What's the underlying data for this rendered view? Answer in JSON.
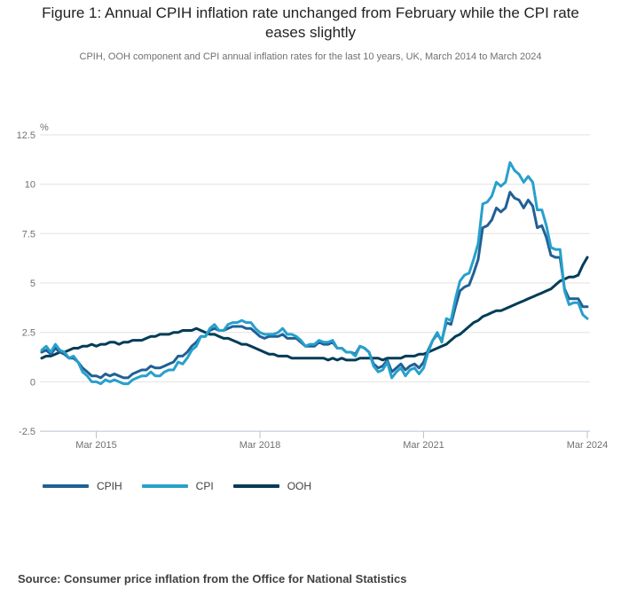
{
  "header": {
    "title": "Figure 1: Annual CPIH inflation rate unchanged from February while the CPI rate eases slightly",
    "subtitle": "CPIH, OOH component and CPI annual inflation rates for the last 10 years, UK, March 2014 to March 2024"
  },
  "source": {
    "text": "Source: Consumer price inflation from the Office for National Statistics"
  },
  "style": {
    "grid_color": "#e2e2e2",
    "axis_color": "#b9c3d2",
    "axis_text_color": "#707071",
    "title_color": "#222222",
    "subtitle_color": "#707071",
    "legend_text_color": "#414042",
    "source_color": "#414042",
    "background": "#ffffff"
  },
  "chart_data": {
    "type": "line",
    "unit_label": "%",
    "x_start": "March 2014",
    "x_end": "March 2024",
    "x_frequency": "monthly",
    "x_tick_labels": [
      "Mar 2015",
      "Mar 2018",
      "Mar 2021",
      "Mar 2024"
    ],
    "x_tick_month_index": [
      12,
      48,
      84,
      120
    ],
    "y_ticks": [
      -2.5,
      0,
      2.5,
      5,
      7.5,
      10,
      12.5
    ],
    "ylim": [
      -2.5,
      12.5
    ],
    "grid": "horizontal",
    "legend_position": "bottom",
    "line_width": 3,
    "draw_order": [
      2,
      0,
      1
    ],
    "series": [
      {
        "name": "CPIH",
        "color": "#206095",
        "values": [
          1.5,
          1.6,
          1.4,
          1.7,
          1.5,
          1.4,
          1.2,
          1.2,
          1.0,
          0.7,
          0.5,
          0.3,
          0.3,
          0.2,
          0.4,
          0.3,
          0.4,
          0.3,
          0.2,
          0.2,
          0.4,
          0.5,
          0.6,
          0.6,
          0.8,
          0.7,
          0.7,
          0.8,
          0.9,
          1.0,
          1.3,
          1.3,
          1.5,
          1.8,
          2.0,
          2.3,
          2.3,
          2.6,
          2.7,
          2.6,
          2.6,
          2.7,
          2.8,
          2.8,
          2.8,
          2.7,
          2.7,
          2.5,
          2.3,
          2.2,
          2.3,
          2.3,
          2.3,
          2.4,
          2.2,
          2.2,
          2.2,
          2.0,
          1.8,
          1.8,
          1.8,
          2.0,
          1.9,
          1.9,
          2.0,
          1.7,
          1.7,
          1.5,
          1.5,
          1.4,
          1.8,
          1.7,
          1.5,
          0.9,
          0.7,
          0.8,
          1.1,
          0.5,
          0.7,
          0.9,
          0.6,
          0.8,
          0.9,
          0.7,
          1.0,
          1.6,
          2.1,
          2.4,
          2.1,
          3.0,
          2.9,
          3.8,
          4.6,
          4.8,
          4.9,
          5.5,
          6.2,
          7.8,
          7.9,
          8.2,
          8.8,
          8.6,
          8.8,
          9.6,
          9.3,
          9.2,
          8.8,
          9.2,
          8.9,
          7.8,
          7.9,
          7.3,
          6.4,
          6.3,
          6.3,
          4.7,
          4.2,
          4.2,
          4.2,
          3.8,
          3.8
        ]
      },
      {
        "name": "CPI",
        "color": "#27a0cc",
        "values": [
          1.6,
          1.8,
          1.5,
          1.9,
          1.6,
          1.5,
          1.2,
          1.3,
          1.0,
          0.5,
          0.3,
          0.0,
          0.0,
          -0.1,
          0.1,
          0.0,
          0.1,
          0.0,
          -0.1,
          -0.1,
          0.1,
          0.2,
          0.3,
          0.3,
          0.5,
          0.3,
          0.3,
          0.5,
          0.6,
          0.6,
          1.0,
          0.9,
          1.2,
          1.6,
          1.8,
          2.3,
          2.3,
          2.7,
          2.9,
          2.6,
          2.6,
          2.9,
          3.0,
          3.0,
          3.1,
          3.0,
          3.0,
          2.7,
          2.5,
          2.4,
          2.4,
          2.4,
          2.5,
          2.7,
          2.4,
          2.4,
          2.3,
          2.1,
          1.8,
          1.9,
          1.9,
          2.1,
          2.0,
          2.0,
          2.1,
          1.7,
          1.7,
          1.5,
          1.5,
          1.3,
          1.8,
          1.7,
          1.5,
          0.8,
          0.5,
          0.6,
          1.0,
          0.2,
          0.5,
          0.7,
          0.3,
          0.6,
          0.7,
          0.4,
          0.7,
          1.5,
          2.1,
          2.5,
          2.0,
          3.2,
          3.1,
          4.2,
          5.1,
          5.4,
          5.5,
          6.2,
          7.0,
          9.0,
          9.1,
          9.4,
          10.1,
          9.9,
          10.1,
          11.1,
          10.7,
          10.5,
          10.1,
          10.4,
          10.1,
          8.7,
          8.7,
          7.9,
          6.8,
          6.7,
          6.7,
          4.6,
          3.9,
          4.0,
          4.0,
          3.4,
          3.2
        ]
      },
      {
        "name": "OOH",
        "color": "#003c57",
        "values": [
          1.2,
          1.3,
          1.3,
          1.4,
          1.5,
          1.5,
          1.6,
          1.7,
          1.7,
          1.8,
          1.8,
          1.9,
          1.8,
          1.9,
          1.9,
          2.0,
          2.0,
          1.9,
          2.0,
          2.0,
          2.1,
          2.1,
          2.1,
          2.2,
          2.3,
          2.3,
          2.4,
          2.4,
          2.4,
          2.5,
          2.5,
          2.6,
          2.6,
          2.6,
          2.7,
          2.6,
          2.5,
          2.4,
          2.4,
          2.3,
          2.2,
          2.2,
          2.1,
          2.0,
          1.9,
          1.9,
          1.8,
          1.7,
          1.6,
          1.5,
          1.4,
          1.4,
          1.3,
          1.3,
          1.3,
          1.2,
          1.2,
          1.2,
          1.2,
          1.2,
          1.2,
          1.2,
          1.2,
          1.1,
          1.2,
          1.1,
          1.2,
          1.1,
          1.1,
          1.1,
          1.2,
          1.2,
          1.2,
          1.2,
          1.2,
          1.1,
          1.2,
          1.2,
          1.2,
          1.2,
          1.3,
          1.3,
          1.3,
          1.4,
          1.4,
          1.5,
          1.6,
          1.7,
          1.8,
          1.9,
          2.1,
          2.3,
          2.4,
          2.6,
          2.8,
          3.0,
          3.1,
          3.3,
          3.4,
          3.5,
          3.6,
          3.6,
          3.7,
          3.8,
          3.9,
          4.0,
          4.1,
          4.2,
          4.3,
          4.4,
          4.5,
          4.6,
          4.7,
          4.9,
          5.1,
          5.2,
          5.3,
          5.3,
          5.4,
          5.9,
          6.3
        ]
      }
    ]
  }
}
